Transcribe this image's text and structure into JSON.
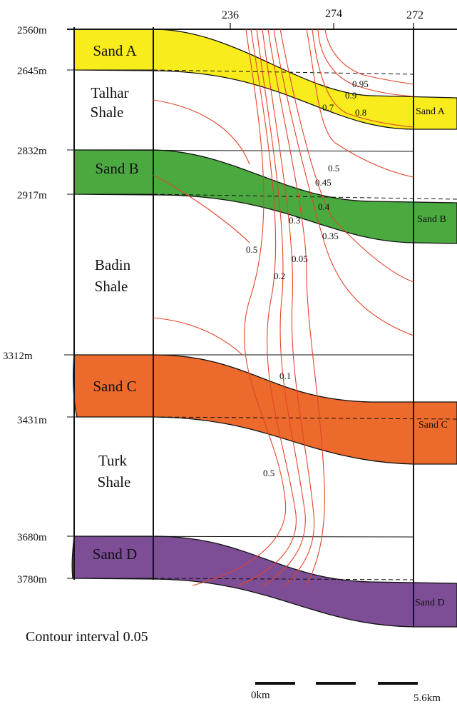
{
  "wells": [
    "236",
    "274",
    "272"
  ],
  "depth_markers": [
    "2560m",
    "2645m",
    "2832m",
    "2917m",
    "3312m",
    "3431m",
    "3680m",
    "3780m"
  ],
  "units": {
    "sand_a": "Sand A",
    "talhar_1": "Talhar",
    "talhar_2": "Shale",
    "sand_b": "Sand B",
    "badin_1": "Badin",
    "badin_2": "Shale",
    "sand_c": "Sand C",
    "turk_1": "Turk",
    "turk_2": "Shale",
    "sand_d": "Sand D"
  },
  "right_sand_labels": [
    "Sand A",
    "Sand B",
    "Sand C",
    "Sand D"
  ],
  "contour_labels": [
    "0.95",
    "0.9",
    "0.7",
    "0.8",
    "0.5",
    "0.45",
    "0.4",
    "0.3",
    "0.35",
    "0.5",
    "0.05",
    "0.2",
    "0.1",
    "0.5"
  ],
  "contour_interval": "Contour interval 0.05",
  "scale_bar": {
    "start": "0km",
    "end": "5.6km"
  },
  "colors": {
    "sand_a": "#f8ec1c",
    "sand_b": "#4aaa3f",
    "sand_c": "#ec6a2c",
    "sand_d": "#7d4d96",
    "contour": "#e2452a"
  }
}
